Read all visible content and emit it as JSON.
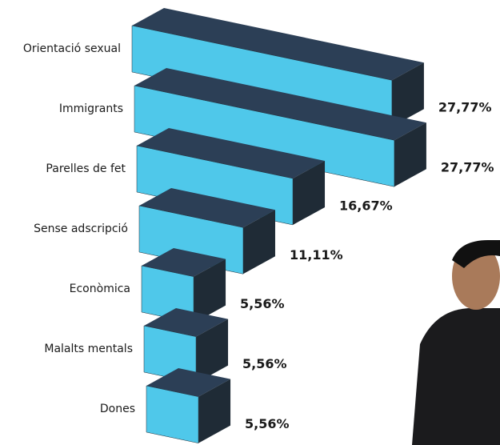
{
  "chart_data": {
    "type": "bar3d",
    "categories": [
      "Orientació sexual",
      "Immigrants",
      "Parelles de fet",
      "Sense adscripció",
      "Econòmica",
      "Malalts mentals",
      "Dones"
    ],
    "values": [
      27.77,
      27.77,
      16.67,
      11.11,
      5.56,
      5.56,
      5.56
    ],
    "value_labels": [
      "27,77%",
      "27,77%",
      "16,67%",
      "11,11%",
      "5,56%",
      "5,56%",
      "5,56%"
    ],
    "color": "#4fc8ea",
    "top_color": "#2c3f56",
    "side_color": "#1f2b36"
  }
}
